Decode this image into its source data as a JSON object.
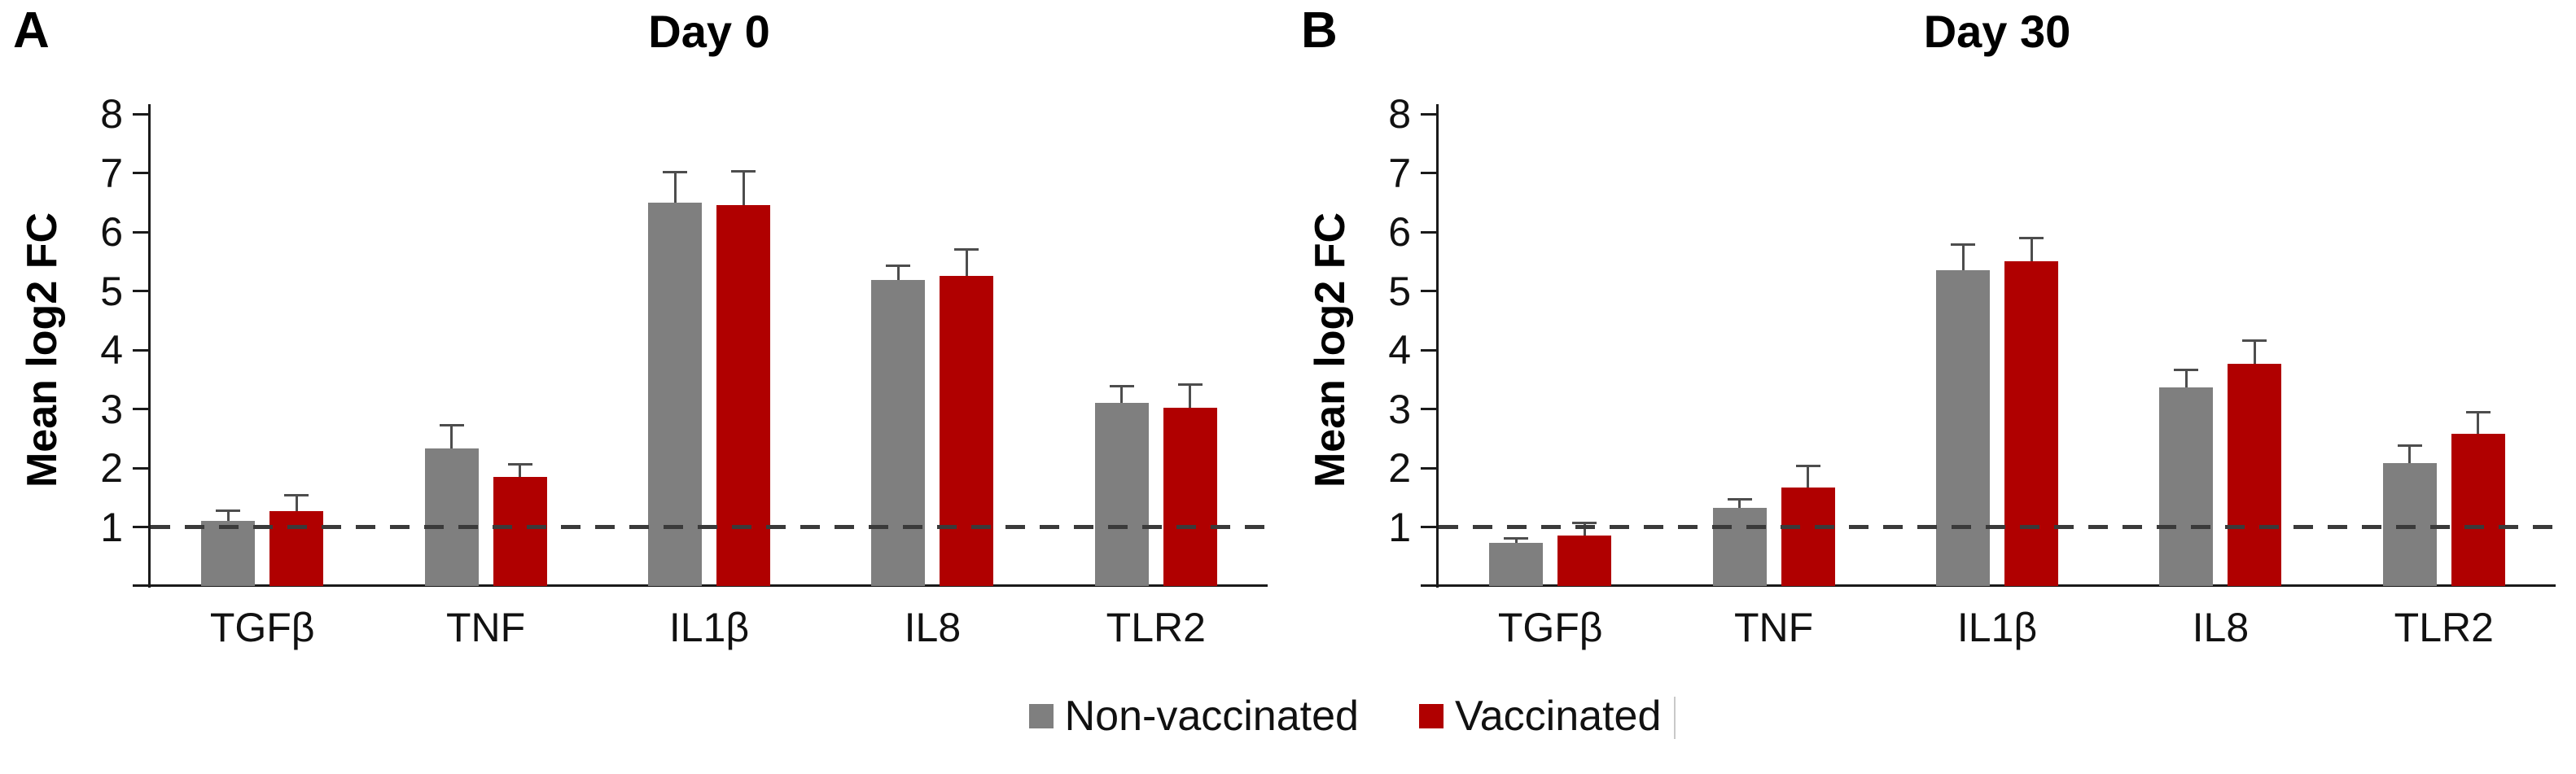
{
  "figure": {
    "background": "#ffffff",
    "legend": {
      "position": "bottom-center",
      "items": [
        {
          "label": "Non-vaccinated",
          "color": "#7F7F7F"
        },
        {
          "label": "Vaccinated",
          "color": "#B00000"
        }
      ]
    },
    "colors": {
      "axis": "#1a1a1a",
      "reference_line": "#3a3a3a",
      "error_bar": "#4d4d4d",
      "non_vaccinated_bar": "#7F7F7F",
      "vaccinated_bar": "#B00000"
    }
  },
  "chart_data": [
    {
      "type": "bar",
      "panel_label": "A",
      "title": "Day 0",
      "ylabel": "Mean log2 FC",
      "xlabel": "",
      "ylim": [
        0,
        8
      ],
      "yticks": [
        1,
        2,
        3,
        4,
        5,
        6,
        7,
        8
      ],
      "reference_line": 1,
      "grid": false,
      "categories": [
        "TGFβ",
        "TNF",
        "IL1β",
        "IL8",
        "TLR2"
      ],
      "series": [
        {
          "name": "Non-vaccinated",
          "color": "#7F7F7F",
          "values": [
            1.1,
            2.33,
            6.5,
            5.18,
            3.1
          ],
          "errors": [
            0.18,
            0.4,
            0.52,
            0.25,
            0.3
          ]
        },
        {
          "name": "Vaccinated",
          "color": "#B00000",
          "values": [
            1.27,
            1.85,
            6.45,
            5.25,
            3.02
          ],
          "errors": [
            0.28,
            0.22,
            0.58,
            0.46,
            0.4
          ]
        }
      ]
    },
    {
      "type": "bar",
      "panel_label": "B",
      "title": "Day 30",
      "ylabel": "Mean log2 FC",
      "xlabel": "",
      "ylim": [
        0,
        8
      ],
      "yticks": [
        1,
        2,
        3,
        4,
        5,
        6,
        7,
        8
      ],
      "reference_line": 1,
      "grid": false,
      "categories": [
        "TGFβ",
        "TNF",
        "IL1β",
        "IL8",
        "TLR2"
      ],
      "series": [
        {
          "name": "Non-vaccinated",
          "color": "#7F7F7F",
          "values": [
            0.73,
            1.33,
            5.35,
            3.37,
            2.08
          ],
          "errors": [
            0.08,
            0.15,
            0.45,
            0.3,
            0.3
          ]
        },
        {
          "name": "Vaccinated",
          "color": "#B00000",
          "values": [
            0.85,
            1.67,
            5.5,
            3.77,
            2.58
          ],
          "errors": [
            0.22,
            0.37,
            0.4,
            0.4,
            0.37
          ]
        }
      ]
    }
  ]
}
